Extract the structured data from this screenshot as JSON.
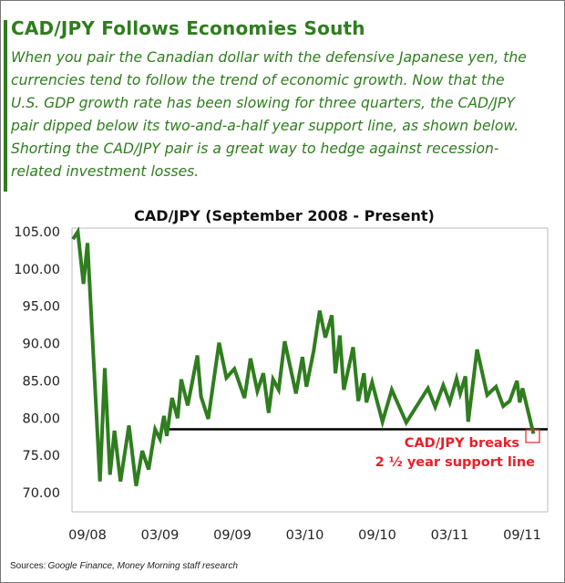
{
  "headline": "CAD/JPY Follows Economies South",
  "body_lines": [
    "When you pair the Canadian dollar with the defensive Japanese yen, the",
    "currencies tend to follow the trend of economic growth. Now that the",
    "U.S. GDP growth rate has been slowing for three quarters, the CAD/JPY",
    "pair dipped below its two-and-a-half year support line, as shown below.",
    "Shorting the CAD/JPY pair is a great way to hedge against recession-",
    "related investment losses."
  ],
  "colors": {
    "accent": "#2f7d1f",
    "series": "#2f7d1f",
    "support_line": "#000000",
    "annotation": "#e8202a"
  },
  "sources": {
    "label": "Sources:",
    "text": "Google Finance, Money Morning staff research"
  },
  "chart_data": {
    "type": "line",
    "title": "CAD/JPY (September 2008 - Present)",
    "xlabel": "",
    "ylabel": "",
    "ylim": [
      70,
      105
    ],
    "yticks": [
      "105.00",
      "100.00",
      "95.00",
      "90.00",
      "85.00",
      "80.00",
      "75.00",
      "70.00"
    ],
    "xticks": [
      "09/08",
      "03/09",
      "09/09",
      "03/10",
      "09/10",
      "03/11",
      "09/11"
    ],
    "grid": false,
    "series": [
      {
        "x": [
          "2008-07-25",
          "2008-08-07",
          "2008-08-21",
          "2008-09-01",
          "2008-10-02",
          "2008-10-14",
          "2008-10-27",
          "2008-11-08",
          "2008-11-23",
          "2008-12-14",
          "2009-01-02",
          "2009-01-17",
          "2009-02-03",
          "2009-02-19",
          "2009-03-01",
          "2009-03-11",
          "2009-03-18",
          "2009-04-01",
          "2009-04-15",
          "2009-04-24",
          "2009-05-10",
          "2009-06-04",
          "2009-06-13",
          "2009-07-01",
          "2009-07-28",
          "2009-08-16",
          "2009-09-06",
          "2009-10-01",
          "2009-10-16",
          "2009-11-03",
          "2009-11-18",
          "2009-12-01",
          "2009-12-12",
          "2009-12-26",
          "2010-01-11",
          "2010-02-09",
          "2010-02-25",
          "2010-03-05",
          "2010-03-23",
          "2010-04-08",
          "2010-04-22",
          "2010-05-08",
          "2010-05-17",
          "2010-05-28",
          "2010-06-08",
          "2010-07-01",
          "2010-07-14",
          "2010-07-28",
          "2010-08-04",
          "2010-08-18",
          "2010-09-14",
          "2010-10-07",
          "2010-11-13",
          "2011-01-07",
          "2011-01-25",
          "2011-02-15",
          "2011-03-01",
          "2011-03-18",
          "2011-03-27",
          "2011-04-10",
          "2011-04-17",
          "2011-05-09",
          "2011-06-04",
          "2011-06-26",
          "2011-07-14",
          "2011-07-30",
          "2011-08-18",
          "2011-08-25",
          "2011-09-02",
          "2011-09-29"
        ],
        "y": [
          104.0,
          105.0,
          98.0,
          103.5,
          71.5,
          86.7,
          72.4,
          78.3,
          71.5,
          79.0,
          70.9,
          75.6,
          73.1,
          78.5,
          77.2,
          80.3,
          77.6,
          82.7,
          80.0,
          85.2,
          81.7,
          88.4,
          82.9,
          79.9,
          90.1,
          85.4,
          86.6,
          82.7,
          88.0,
          83.6,
          86.0,
          80.7,
          85.2,
          83.8,
          90.3,
          83.3,
          88.2,
          84.2,
          89.0,
          94.4,
          90.8,
          93.8,
          86.0,
          91.1,
          83.8,
          89.5,
          82.3,
          86.0,
          82.1,
          84.8,
          79.5,
          83.8,
          79.4,
          84.0,
          81.5,
          84.4,
          82.1,
          85.3,
          83.3,
          85.6,
          79.5,
          89.2,
          83.1,
          84.2,
          81.6,
          82.3,
          85.0,
          82.1,
          84.0,
          77.9
        ]
      }
    ],
    "support_line": {
      "value": 78.5,
      "from": "2009-03-11",
      "to": "present"
    },
    "annotation": {
      "lines": [
        "CAD/JPY breaks",
        "2 ½ year support line"
      ]
    }
  }
}
